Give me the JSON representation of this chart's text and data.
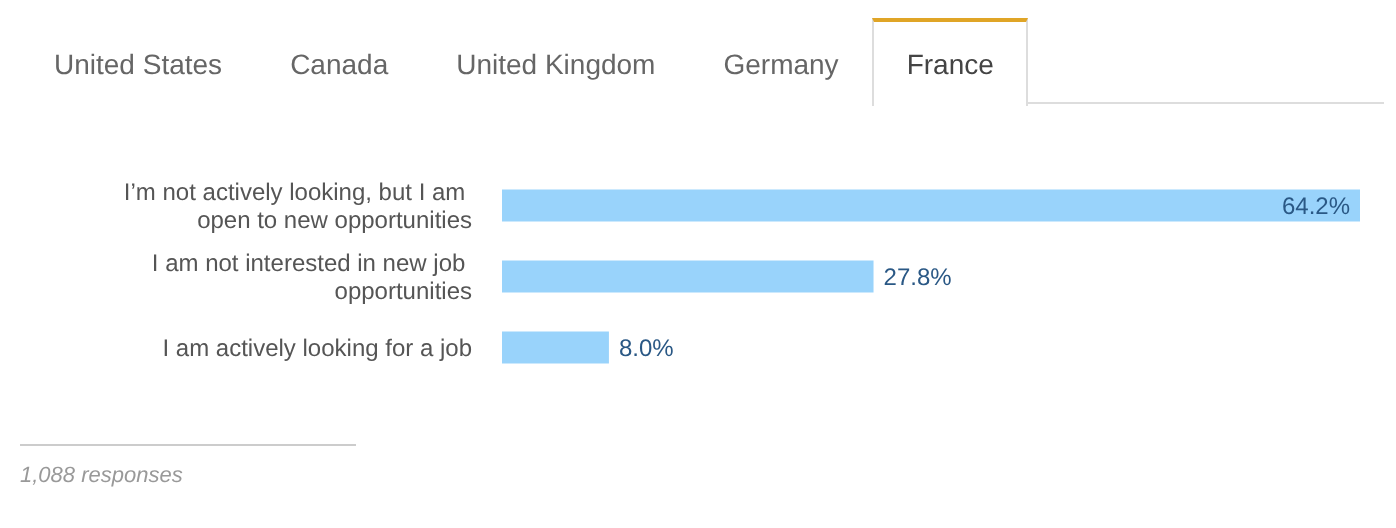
{
  "chart_data": {
    "type": "bar",
    "orientation": "horizontal",
    "categories": [
      "I’m not actively looking, but I am open to new opportunities",
      "I am not interested in new job opportunities",
      "I am actively looking for a job"
    ],
    "values": [
      64.2,
      27.8,
      8.0
    ],
    "color": "#99d3fb",
    "value_labels": [
      "64.2%",
      "27.8%",
      "8.0%"
    ],
    "tick_labels": "y",
    "annotations": [
      "United States",
      "Canada",
      "United Kingdom",
      "Germany",
      "France",
      "1,088 responses"
    ]
  }
}
